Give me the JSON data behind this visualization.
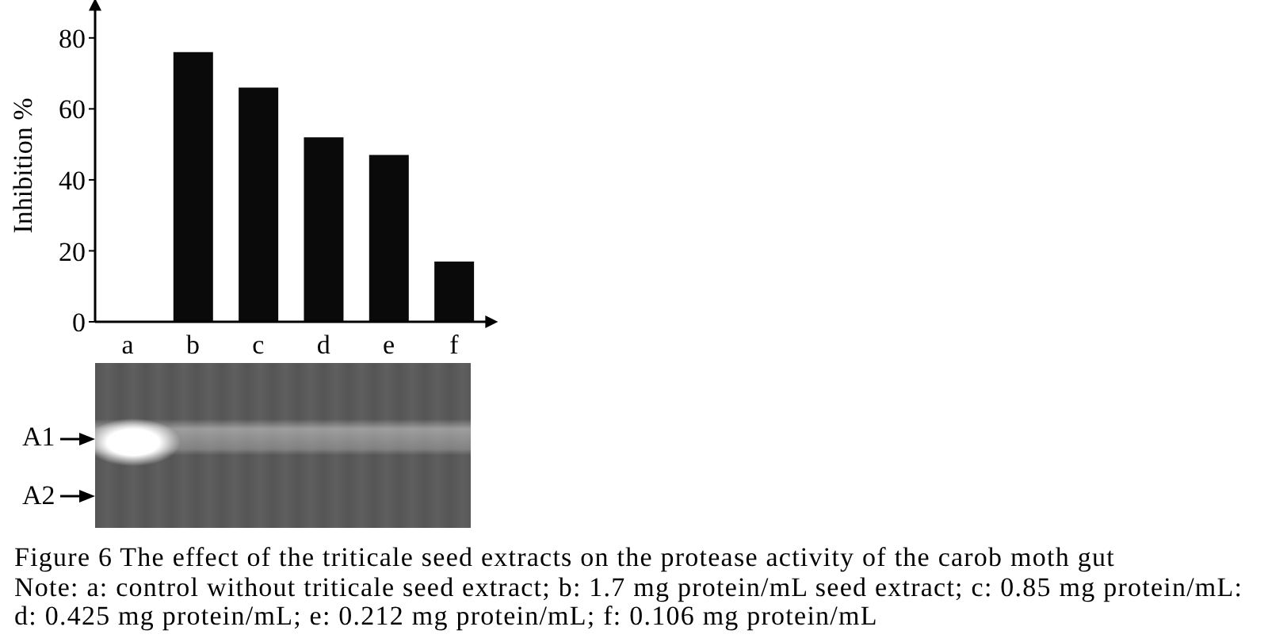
{
  "chart_data": {
    "type": "bar",
    "title": "Figure 6 The effect of the triticale seed extracts on the protease activity of the carob moth gut",
    "ylabel": "Inhibition %",
    "categories": [
      "a",
      "b",
      "c",
      "d",
      "e",
      "f"
    ],
    "values": [
      0,
      76,
      66,
      52,
      47,
      17
    ],
    "color": "#0a0a0a",
    "ylim": [
      0,
      88
    ],
    "yticks": [
      0,
      20,
      40,
      60,
      80
    ],
    "annotations": [
      "A1",
      "A2",
      "Note: a: control without triticale seed extract; b: 1.7 mg protein/mL seed extract; c: 0.85 mg protein/mL: d: 0.425 mg protein/mL; e: 0.212 mg protein/mL; f: 0.106 mg protein/mL"
    ]
  }
}
